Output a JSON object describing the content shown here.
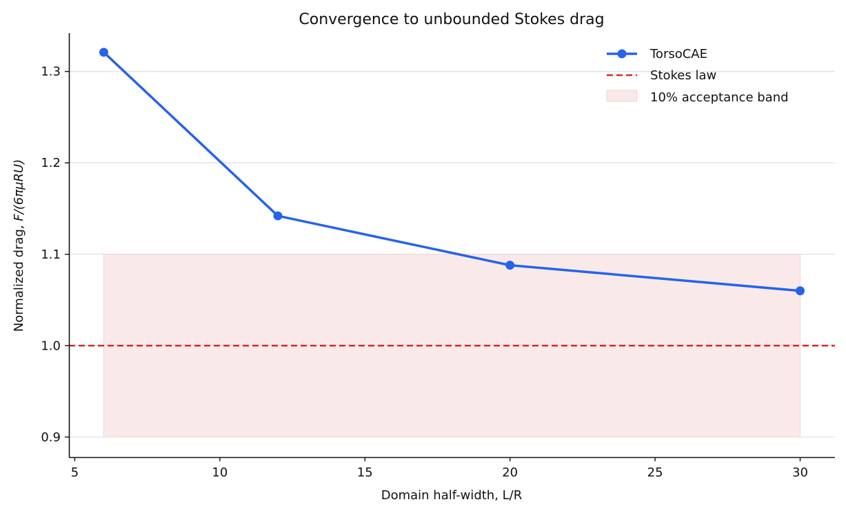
{
  "chart_data": {
    "type": "line",
    "title": "Convergence to unbounded Stokes drag",
    "xlabel": "Domain half-width, L/R",
    "ylabel_prefix": "Normalized drag, ",
    "ylabel_math": "F/(6πμRU)",
    "xlim": [
      4.8,
      31.2
    ],
    "ylim": [
      0.878,
      1.342
    ],
    "x_ticks": [
      5,
      10,
      15,
      20,
      25,
      30
    ],
    "y_ticks": [
      0.9,
      1.0,
      1.1,
      1.2,
      1.3
    ],
    "x_tick_labels": [
      "5",
      "10",
      "15",
      "20",
      "25",
      "30"
    ],
    "y_tick_labels": [
      "0.9",
      "1.0",
      "1.1",
      "1.2",
      "1.3"
    ],
    "grid": "horizontal",
    "legend_position": "top-right",
    "series": [
      {
        "name": "TorsoCAE",
        "color": "#2563eb",
        "x": [
          6,
          12,
          20,
          30
        ],
        "y": [
          1.321,
          1.142,
          1.088,
          1.06
        ]
      }
    ],
    "reference_line": {
      "name": "Stokes law",
      "y": 1.0,
      "color": "#dc2626",
      "style": "dashed"
    },
    "band": {
      "name": "10% acceptance band",
      "x": [
        6,
        30
      ],
      "y": [
        0.9,
        1.1
      ],
      "color": "#f9e9e9"
    }
  }
}
